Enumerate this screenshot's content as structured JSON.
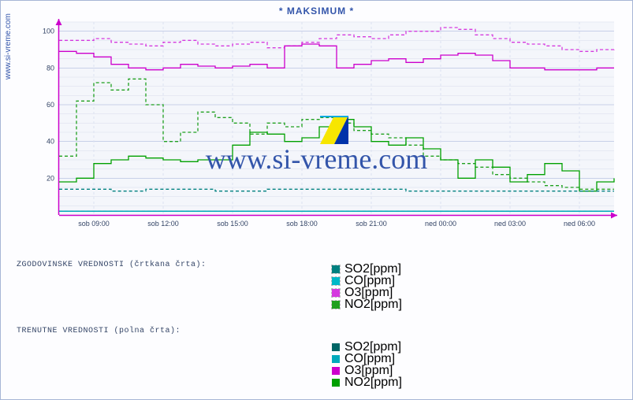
{
  "title": "* MAKSIMUM *",
  "yaxis_label": "www.si-vreme.com",
  "watermark_text": "www.si-vreme.com",
  "chart": {
    "type": "line-step",
    "background_color": "#f4f6fb",
    "border_color": "#a6b6d6",
    "axis_color": "#cc00cc",
    "grid_major_color": "#c8d0e8",
    "grid_minor_color": "#e6e9f3",
    "tick_fontsize": 9,
    "tick_color": "#334466",
    "ylim": [
      0,
      105
    ],
    "y_ticks": [
      20,
      40,
      60,
      80,
      100
    ],
    "x_ticks": [
      "sob 09:00",
      "sob 12:00",
      "sob 15:00",
      "sob 18:00",
      "sob 21:00",
      "ned 00:00",
      "ned 03:00",
      "ned 06:00"
    ],
    "series": [
      {
        "name": "O3_hist",
        "color": "#d53adf",
        "dashed": true,
        "y": [
          95,
          95,
          96,
          94,
          93,
          92,
          94,
          95,
          93,
          92,
          93,
          94,
          91,
          92,
          94,
          96,
          98,
          97,
          96,
          98,
          100,
          100,
          102,
          101,
          98,
          96,
          94,
          93,
          92,
          90,
          89,
          90,
          91
        ]
      },
      {
        "name": "O3_now",
        "color": "#cc00cc",
        "dashed": false,
        "y": [
          89,
          88,
          86,
          82,
          80,
          79,
          80,
          82,
          81,
          80,
          81,
          82,
          80,
          92,
          93,
          92,
          80,
          82,
          84,
          85,
          83,
          85,
          87,
          88,
          87,
          84,
          80,
          80,
          79,
          79,
          79,
          80,
          80
        ]
      },
      {
        "name": "NO2_hist",
        "color": "#1fa01f",
        "dashed": true,
        "y": [
          32,
          62,
          72,
          68,
          74,
          60,
          40,
          45,
          56,
          53,
          50,
          44,
          50,
          48,
          52,
          53,
          50,
          46,
          44,
          42,
          38,
          32,
          30,
          28,
          26,
          22,
          20,
          18,
          16,
          15,
          14,
          14,
          14
        ]
      },
      {
        "name": "NO2_now",
        "color": "#00a000",
        "dashed": false,
        "y": [
          18,
          20,
          28,
          30,
          32,
          31,
          30,
          29,
          30,
          30,
          38,
          45,
          44,
          40,
          42,
          48,
          52,
          48,
          40,
          38,
          42,
          36,
          30,
          20,
          30,
          26,
          18,
          22,
          28,
          24,
          13,
          18,
          20
        ]
      },
      {
        "name": "SO2_hist",
        "color": "#008080",
        "dashed": true,
        "y": [
          14,
          14,
          14,
          13,
          13,
          14,
          14,
          14,
          14,
          13,
          13,
          13,
          14,
          14,
          14,
          14,
          14,
          14,
          14,
          14,
          13,
          13,
          13,
          13,
          13,
          13,
          13,
          13,
          13,
          13,
          13,
          13,
          13
        ]
      },
      {
        "name": "CO_hist",
        "color": "#00b8c8",
        "dashed": true,
        "y": [
          2,
          2,
          2,
          2,
          2,
          2,
          2,
          2,
          2,
          2,
          2,
          2,
          2,
          2,
          2,
          2,
          2,
          2,
          2,
          2,
          2,
          2,
          2,
          2,
          2,
          2,
          2,
          2,
          2,
          2,
          2,
          2,
          2
        ]
      },
      {
        "name": "SO2_now",
        "color": "#006666",
        "dashed": false,
        "y": [
          2,
          2,
          2,
          2,
          2,
          2,
          2,
          2,
          2,
          2,
          2,
          2,
          2,
          2,
          2,
          2,
          2,
          2,
          2,
          2,
          2,
          2,
          2,
          2,
          2,
          2,
          2,
          2,
          2,
          2,
          2,
          2,
          2
        ]
      },
      {
        "name": "CO_now",
        "color": "#00aabb",
        "dashed": false,
        "y": [
          2,
          2,
          2,
          2,
          2,
          2,
          2,
          2,
          2,
          2,
          2,
          2,
          2,
          2,
          2,
          2,
          2,
          2,
          2,
          2,
          2,
          2,
          2,
          2,
          2,
          2,
          2,
          2,
          2,
          2,
          2,
          2,
          2
        ]
      }
    ]
  },
  "legend_hist": {
    "title": "ZGODOVINSKE VREDNOSTI (črtkana črta):",
    "items": [
      {
        "label": "SO2[ppm]",
        "color": "#008080"
      },
      {
        "label": "CO[ppm]",
        "color": "#00b8c8"
      },
      {
        "label": "O3[ppm]",
        "color": "#d53adf"
      },
      {
        "label": "NO2[ppm]",
        "color": "#1fa01f"
      }
    ]
  },
  "legend_now": {
    "title": "TRENUTNE VREDNOSTI (polna črta):",
    "items": [
      {
        "label": "SO2[ppm]",
        "color": "#006666"
      },
      {
        "label": "CO[ppm]",
        "color": "#00aabb"
      },
      {
        "label": "O3[ppm]",
        "color": "#cc00cc"
      },
      {
        "label": "NO2[ppm]",
        "color": "#00a000"
      }
    ]
  },
  "wm_logo_colors": [
    "#f7e600",
    "#0033aa",
    "#00a9e0"
  ]
}
